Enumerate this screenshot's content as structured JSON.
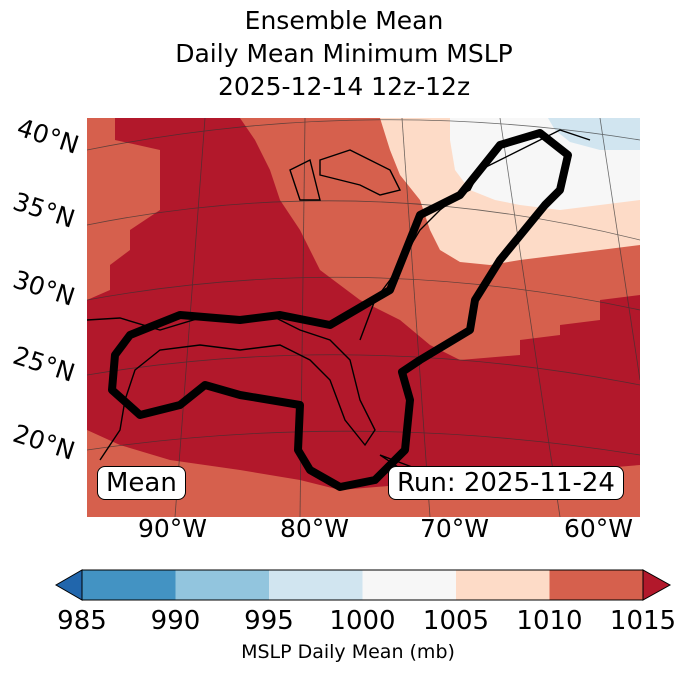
{
  "title": [
    "Ensemble Mean",
    "Daily Mean Minimum MSLP",
    "2025-12-14 12z-12z"
  ],
  "lat_labels": [
    "40°N",
    "35°N",
    "30°N",
    "25°N",
    "20°N"
  ],
  "lon_labels": [
    "90°W",
    "80°W",
    "70°W",
    "60°W"
  ],
  "annotations": {
    "left": "Mean",
    "right": "Run: 2025-11-24"
  },
  "colorbar": {
    "ticks": [
      "985",
      "990",
      "995",
      "1000",
      "1005",
      "1010",
      "1015"
    ],
    "label": "MSLP Daily Mean (mb)",
    "colors": [
      "#4393c3",
      "#92c5de",
      "#d1e5f0",
      "#f7f7f7",
      "#fddbc7",
      "#d6604d"
    ],
    "under_color": "#2166ac",
    "over_color": "#b2182b"
  },
  "map_colors": {
    "gt1015": "#b2182b",
    "b1010": "#d6604d",
    "b1005": "#fddbc7",
    "b1000": "#f7f7f7",
    "b995": "#d1e5f0",
    "contour": "#000000"
  }
}
